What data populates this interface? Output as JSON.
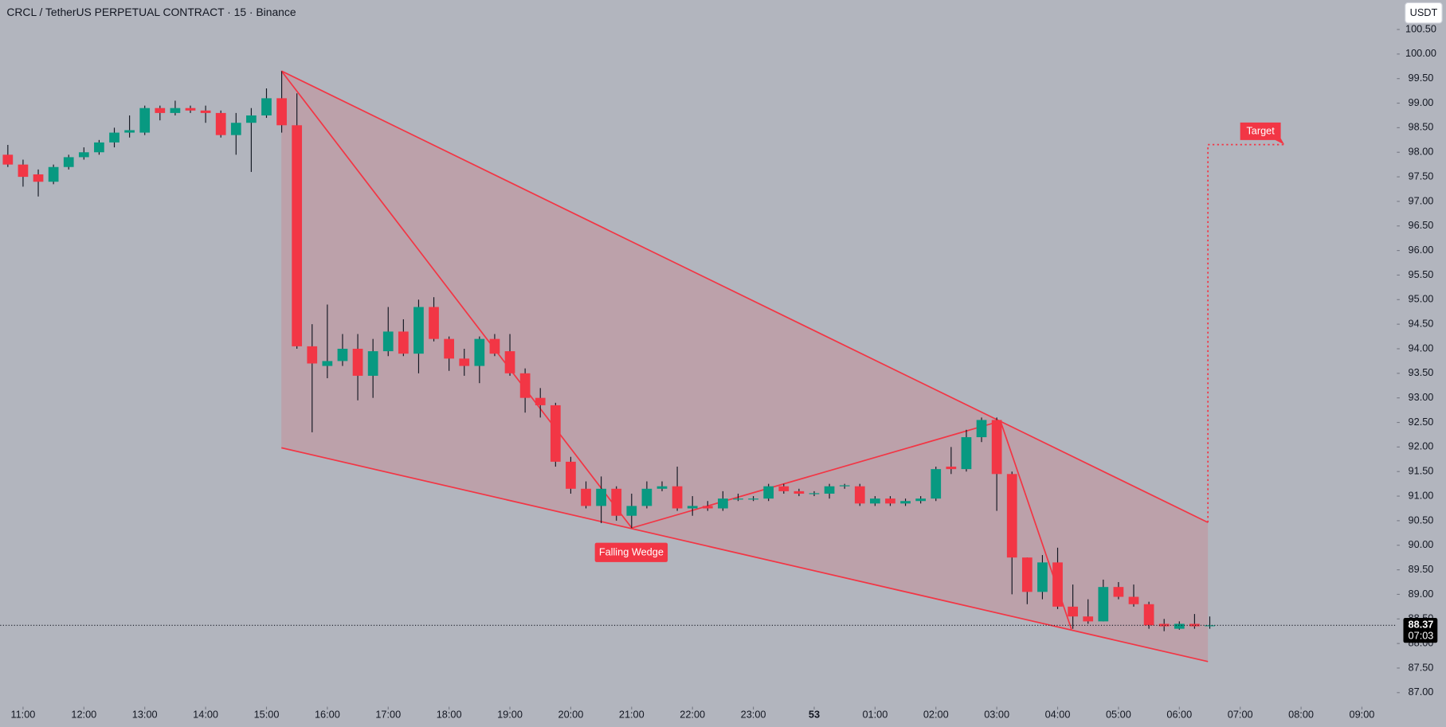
{
  "chart_data": {
    "type": "candlestick",
    "title": "CRCL / TetherUS PERPETUAL CONTRACT · 15 · Binance",
    "currency": "USDT",
    "up_color": "#089981",
    "down_color": "#f23645",
    "xlim": [
      -0.5,
      91.3
    ],
    "xticks": [
      {
        "value": 1,
        "label": "11:00"
      },
      {
        "value": 5,
        "label": "12:00"
      },
      {
        "value": 9,
        "label": "13:00"
      },
      {
        "value": 13,
        "label": "14:00"
      },
      {
        "value": 17,
        "label": "15:00"
      },
      {
        "value": 21,
        "label": "16:00"
      },
      {
        "value": 25,
        "label": "17:00"
      },
      {
        "value": 29,
        "label": "18:00"
      },
      {
        "value": 33,
        "label": "19:00"
      },
      {
        "value": 37,
        "label": "20:00"
      },
      {
        "value": 41,
        "label": "21:00"
      },
      {
        "value": 45,
        "label": "22:00"
      },
      {
        "value": 49,
        "label": "23:00"
      },
      53,
      {
        "value": 57,
        "label": "01:00"
      },
      {
        "value": 61,
        "label": "02:00"
      },
      {
        "value": 65,
        "label": "03:00"
      },
      {
        "value": 69,
        "label": "04:00"
      },
      {
        "value": 73,
        "label": "05:00"
      },
      {
        "value": 77,
        "label": "06:00"
      },
      {
        "value": 81,
        "label": "07:00"
      },
      {
        "value": 85,
        "label": "08:00"
      },
      {
        "value": 89,
        "label": "09:00"
      }
    ],
    "ylim": [
      86.75,
      101.1
    ],
    "yticks": [
      {
        "value": 87,
        "label": "87.00"
      },
      {
        "value": 87.5,
        "label": "87.50"
      },
      {
        "value": 88,
        "label": "88.00"
      },
      {
        "value": 88.5,
        "label": "88.50"
      },
      {
        "value": 89,
        "label": "89.00"
      },
      {
        "value": 89.5,
        "label": "89.50"
      },
      {
        "value": 90,
        "label": "90.00"
      },
      {
        "value": 90.5,
        "label": "90.50"
      },
      {
        "value": 91,
        "label": "91.00"
      },
      {
        "value": 91.5,
        "label": "91.50"
      },
      {
        "value": 92,
        "label": "92.00"
      },
      {
        "value": 92.5,
        "label": "92.50"
      },
      {
        "value": 93,
        "label": "93.00"
      },
      {
        "value": 93.5,
        "label": "93.50"
      },
      {
        "value": 94,
        "label": "94.00"
      },
      {
        "value": 94.5,
        "label": "94.50"
      },
      {
        "value": 95,
        "label": "95.00"
      },
      {
        "value": 95.5,
        "label": "95.50"
      },
      {
        "value": 96,
        "label": "96.00"
      },
      {
        "value": 96.5,
        "label": "96.50"
      },
      {
        "value": 97,
        "label": "97.00"
      },
      {
        "value": 97.5,
        "label": "97.50"
      },
      {
        "value": 98,
        "label": "98.00"
      },
      {
        "value": 98.5,
        "label": "98.50"
      },
      {
        "value": 99,
        "label": "99.00"
      },
      {
        "value": 99.5,
        "label": "99.50"
      },
      {
        "value": 100,
        "label": "100.00"
      },
      {
        "value": 100.5,
        "label": "100.50"
      }
    ],
    "open": [
      97.95,
      97.75,
      97.55,
      97.4,
      97.7,
      97.9,
      98.0,
      98.2,
      98.4,
      98.4,
      98.9,
      98.8,
      98.9,
      98.85,
      98.8,
      98.35,
      98.6,
      98.75,
      99.1,
      98.55,
      94.05,
      93.65,
      93.75,
      94.0,
      93.45,
      93.95,
      94.35,
      93.9,
      94.85,
      94.2,
      93.8,
      93.65,
      94.2,
      93.95,
      93.5,
      93.0,
      92.85,
      91.7,
      91.15,
      90.8,
      91.15,
      90.6,
      90.8,
      91.15,
      91.2,
      90.75,
      90.8,
      90.75,
      90.93,
      90.93,
      90.95,
      91.2,
      91.1,
      91.04,
      91.05,
      91.2,
      91.2,
      90.85,
      90.95,
      90.85,
      90.9,
      90.95,
      91.6,
      91.55,
      92.2,
      92.55,
      91.45,
      89.75,
      89.05,
      89.65,
      88.75,
      88.55,
      88.45,
      89.15,
      88.95,
      88.8,
      88.4,
      88.3,
      88.4,
      88.37
    ],
    "high": [
      98.15,
      97.85,
      97.65,
      97.75,
      97.95,
      98.1,
      98.25,
      98.5,
      98.75,
      98.95,
      98.95,
      99.05,
      98.95,
      98.95,
      98.85,
      98.8,
      98.9,
      99.3,
      99.65,
      99.2,
      94.5,
      94.9,
      94.3,
      94.3,
      94.2,
      94.85,
      94.6,
      95.0,
      95.05,
      94.25,
      94.0,
      94.25,
      94.3,
      94.3,
      93.6,
      93.2,
      92.9,
      91.8,
      91.3,
      91.4,
      91.2,
      91.05,
      91.3,
      91.3,
      91.6,
      91.0,
      90.9,
      91.1,
      91.05,
      91.0,
      91.25,
      91.25,
      91.15,
      91.1,
      91.25,
      91.25,
      91.25,
      91.0,
      91.0,
      90.95,
      91.0,
      91.6,
      92.0,
      92.35,
      92.6,
      92.6,
      91.5,
      89.75,
      89.8,
      89.95,
      89.2,
      88.9,
      89.3,
      89.25,
      89.2,
      88.85,
      88.5,
      88.45,
      88.6,
      88.55
    ],
    "low": [
      97.7,
      97.3,
      97.1,
      97.35,
      97.65,
      97.85,
      97.95,
      98.1,
      98.3,
      98.35,
      98.65,
      98.75,
      98.8,
      98.6,
      98.3,
      97.95,
      97.6,
      98.7,
      98.4,
      94.0,
      92.3,
      93.4,
      93.65,
      92.95,
      93.0,
      93.85,
      93.85,
      93.5,
      94.15,
      93.55,
      93.45,
      93.3,
      93.85,
      93.45,
      92.7,
      92.6,
      91.6,
      91.05,
      90.75,
      90.45,
      90.5,
      90.35,
      90.75,
      91.1,
      90.7,
      90.6,
      90.7,
      90.7,
      90.9,
      90.9,
      90.9,
      91.05,
      91.0,
      91.0,
      90.95,
      91.15,
      90.8,
      90.8,
      90.8,
      90.8,
      90.85,
      90.9,
      91.45,
      91.5,
      92.1,
      90.7,
      89.0,
      88.8,
      88.9,
      88.7,
      88.3,
      88.4,
      88.45,
      88.9,
      88.75,
      88.3,
      88.25,
      88.28,
      88.3,
      88.3
    ],
    "close": [
      97.75,
      97.5,
      97.4,
      97.7,
      97.9,
      98.0,
      98.2,
      98.4,
      98.45,
      98.9,
      98.8,
      98.9,
      98.85,
      98.8,
      98.35,
      98.6,
      98.75,
      99.1,
      98.55,
      94.05,
      93.7,
      93.75,
      94.0,
      93.45,
      93.95,
      94.35,
      93.9,
      94.85,
      94.2,
      93.8,
      93.65,
      94.2,
      93.9,
      93.5,
      93.0,
      92.85,
      91.7,
      91.15,
      90.8,
      91.15,
      90.6,
      90.8,
      91.15,
      91.2,
      90.75,
      90.8,
      90.75,
      90.95,
      90.95,
      90.95,
      91.2,
      91.1,
      91.05,
      91.06,
      91.2,
      91.22,
      90.85,
      90.95,
      90.85,
      90.9,
      90.95,
      91.55,
      91.55,
      92.2,
      92.55,
      91.45,
      89.75,
      89.05,
      89.65,
      88.75,
      88.55,
      88.45,
      89.15,
      88.95,
      88.8,
      88.37,
      88.35,
      88.4,
      88.35,
      88.37
    ],
    "last_price": 88.37,
    "countdown": "07:03",
    "annotations": [
      "Falling Wedge",
      "Target"
    ]
  }
}
